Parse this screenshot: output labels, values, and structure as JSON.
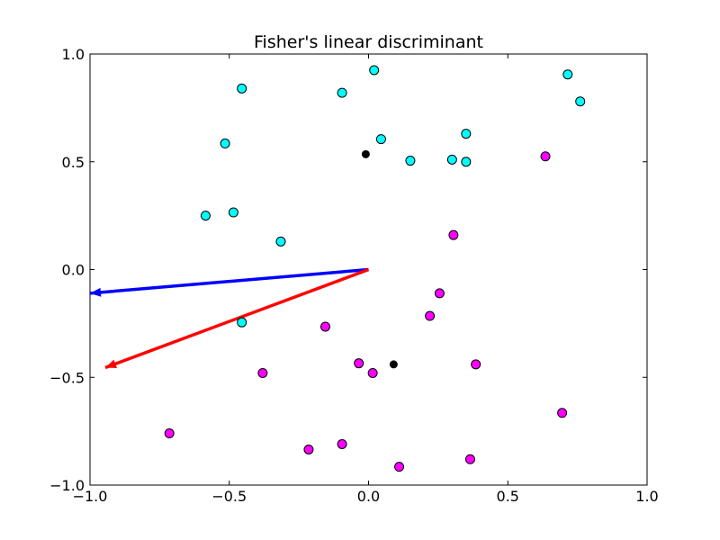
{
  "chart_data": {
    "type": "scatter",
    "title": "Fisher's linear discriminant",
    "xlabel": "",
    "ylabel": "",
    "xlim": [
      -1.0,
      1.0
    ],
    "ylim": [
      -1.0,
      1.0
    ],
    "x_ticks": [
      -1.0,
      -0.5,
      0.0,
      0.5,
      1.0
    ],
    "y_ticks": [
      -1.0,
      -0.5,
      0.0,
      0.5,
      1.0
    ],
    "x_tick_labels": [
      "−1.0",
      "−0.5",
      "0.0",
      "0.5",
      "1.0"
    ],
    "y_tick_labels": [
      "−1.0",
      "−0.5",
      "0.0",
      "0.5",
      "1.0"
    ],
    "grid": false,
    "series": [
      {
        "color": "#00ffff",
        "points": [
          [
            -0.455,
            0.84
          ],
          [
            -0.095,
            0.82
          ],
          [
            0.02,
            0.925
          ],
          [
            0.715,
            0.905
          ],
          [
            0.76,
            0.78
          ],
          [
            -0.515,
            0.585
          ],
          [
            0.045,
            0.605
          ],
          [
            0.35,
            0.63
          ],
          [
            0.15,
            0.505
          ],
          [
            0.3,
            0.51
          ],
          [
            0.35,
            0.5
          ],
          [
            -0.585,
            0.25
          ],
          [
            -0.485,
            0.265
          ],
          [
            -0.315,
            0.13
          ],
          [
            -0.455,
            -0.245
          ]
        ]
      },
      {
        "color": "#ff00ff",
        "points": [
          [
            0.635,
            0.525
          ],
          [
            0.305,
            0.16
          ],
          [
            0.255,
            -0.11
          ],
          [
            0.22,
            -0.215
          ],
          [
            -0.155,
            -0.265
          ],
          [
            -0.38,
            -0.48
          ],
          [
            -0.035,
            -0.435
          ],
          [
            0.015,
            -0.48
          ],
          [
            0.385,
            -0.44
          ],
          [
            0.695,
            -0.665
          ],
          [
            -0.715,
            -0.76
          ],
          [
            -0.215,
            -0.835
          ],
          [
            -0.095,
            -0.81
          ],
          [
            0.11,
            -0.915
          ],
          [
            0.365,
            -0.88
          ]
        ]
      },
      {
        "color": "#000000",
        "points": [
          [
            -0.01,
            0.535
          ],
          [
            0.09,
            -0.44
          ]
        ]
      }
    ],
    "vectors": [
      {
        "color": "#0000ff",
        "from": [
          0.0,
          0.0
        ],
        "to": [
          -1.0,
          -0.11
        ]
      },
      {
        "color": "#ff0000",
        "from": [
          0.0,
          0.0
        ],
        "to": [
          -0.945,
          -0.455
        ]
      }
    ]
  }
}
